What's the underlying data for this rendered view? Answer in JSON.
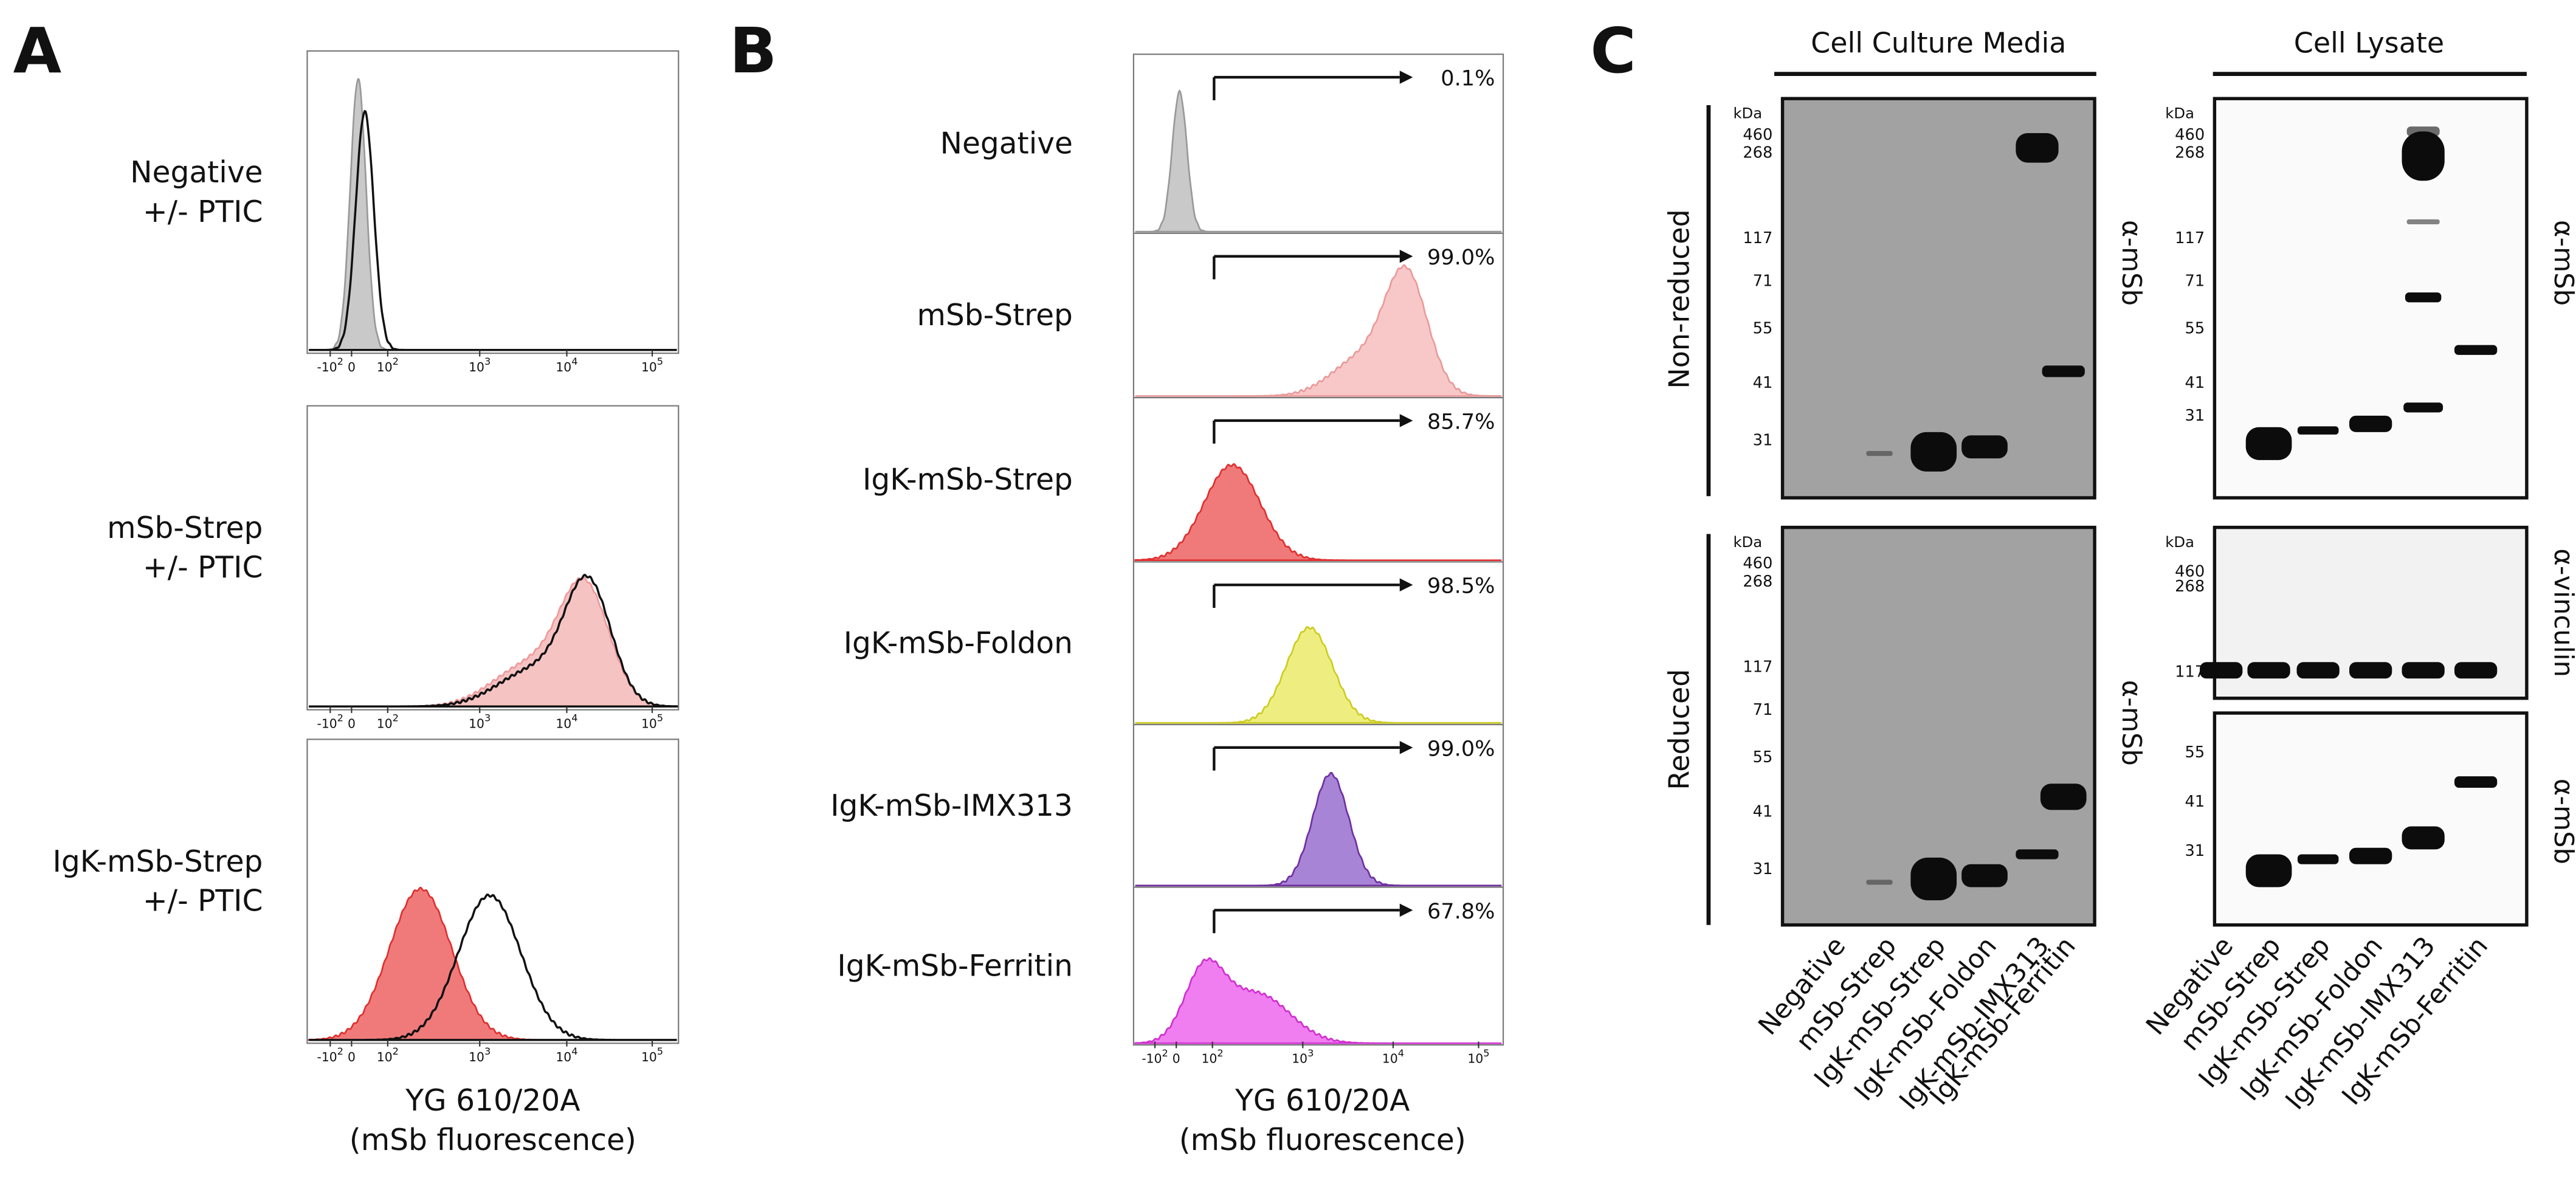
{
  "panel_a": {
    "label": "A",
    "samples": [
      {
        "name": "Negative",
        "condition": "+/- PTIC"
      },
      {
        "name": "mSb-Strep",
        "condition": "+/- PTIC"
      },
      {
        "name": "IgK-mSb-Strep",
        "condition": "+/- PTIC"
      }
    ],
    "axis_title": "YG 610/20A",
    "axis_subtitle": "(mSb fluorescence)",
    "ticks": [
      {
        "base": "-10",
        "sup": "2"
      },
      {
        "base": "0"
      },
      {
        "base": "10",
        "sup": "2"
      },
      {
        "base": "10",
        "sup": "3"
      },
      {
        "base": "10",
        "sup": "4"
      },
      {
        "base": "10",
        "sup": "5"
      }
    ]
  },
  "panel_b": {
    "label": "B",
    "samples": [
      {
        "name": "Negative",
        "percent": "0.1%"
      },
      {
        "name": "mSb-Strep",
        "percent": "99.0%"
      },
      {
        "name": "IgK-mSb-Strep",
        "percent": "85.7%"
      },
      {
        "name": "IgK-mSb-Foldon",
        "percent": "98.5%"
      },
      {
        "name": "IgK-mSb-IMX313",
        "percent": "99.0%"
      },
      {
        "name": "IgK-mSb-Ferritin",
        "percent": "67.8%"
      }
    ],
    "axis_title": "YG 610/20A",
    "axis_subtitle": "(mSb fluorescence)",
    "ticks": [
      {
        "base": "-10",
        "sup": "2"
      },
      {
        "base": "0"
      },
      {
        "base": "10",
        "sup": "2"
      },
      {
        "base": "10",
        "sup": "3"
      },
      {
        "base": "10",
        "sup": "4"
      },
      {
        "base": "10",
        "sup": "5"
      }
    ]
  },
  "panel_c": {
    "label": "C",
    "columns": [
      "Cell Culture Media",
      "Cell Lysate"
    ],
    "rows": [
      "Non-reduced",
      "Reduced"
    ],
    "marker_unit": "kDa",
    "blots": [
      {
        "markers": [
          "460",
          "268",
          "117",
          "71",
          "55",
          "41",
          "31"
        ],
        "antibody": "α-mSb"
      },
      {
        "markers": [
          "460",
          "268",
          "117",
          "71",
          "55",
          "41",
          "31"
        ],
        "antibody": "α-mSb"
      },
      {
        "markers": [
          "460",
          "268",
          "117",
          "71",
          "55",
          "41",
          "31"
        ],
        "antibody": "α-mSb"
      },
      {
        "markers": [
          "460",
          "268",
          "117"
        ],
        "antibody": "α-vinculin"
      },
      {
        "markers": [
          "55",
          "41",
          "31"
        ],
        "antibody": "α-mSb"
      }
    ],
    "lanes": [
      "Negative",
      "mSb-Strep",
      "IgK-mSb-Strep",
      "IgK-mSb-Foldon",
      "IgK-mSb-IMX313",
      "IgK-mSb-Ferritin"
    ]
  }
}
